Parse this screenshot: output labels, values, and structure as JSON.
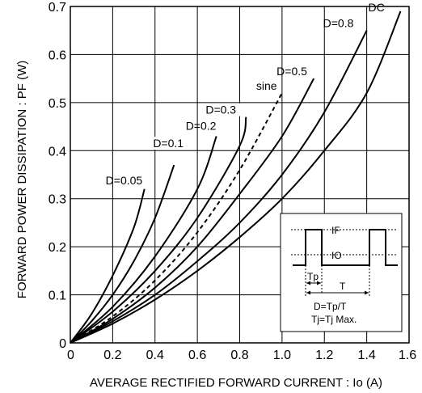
{
  "chart_data": {
    "type": "line",
    "xlabel": "AVERAGE  RECTIFIED  FORWARD  CURRENT : Io (A)",
    "ylabel": "FORWARD  POWER  DISSIPATION : PF (W)",
    "xlim": [
      0,
      1.6
    ],
    "ylim": [
      0,
      0.7
    ],
    "x_ticks": [
      "0",
      "0.2",
      "0.4",
      "0.6",
      "0.8",
      "1.0",
      "1.2",
      "1.4",
      "1.6"
    ],
    "y_ticks": [
      "0",
      "0.1",
      "0.2",
      "0.3",
      "0.4",
      "0.5",
      "0.6",
      "0.7"
    ],
    "grid": true,
    "series": [
      {
        "name": "D=0.05",
        "style": "solid",
        "x": [
          0,
          0.1,
          0.2,
          0.3,
          0.35
        ],
        "y": [
          0,
          0.06,
          0.14,
          0.24,
          0.32
        ]
      },
      {
        "name": "D=0.1",
        "style": "solid",
        "x": [
          0,
          0.1,
          0.2,
          0.3,
          0.4,
          0.49
        ],
        "y": [
          0,
          0.045,
          0.1,
          0.17,
          0.26,
          0.37
        ]
      },
      {
        "name": "D=0.2",
        "style": "solid",
        "x": [
          0,
          0.2,
          0.4,
          0.6,
          0.69
        ],
        "y": [
          0,
          0.075,
          0.18,
          0.32,
          0.43
        ]
      },
      {
        "name": "D=0.3",
        "style": "solid",
        "x": [
          0,
          0.2,
          0.4,
          0.6,
          0.8,
          0.83
        ],
        "y": [
          0,
          0.065,
          0.15,
          0.26,
          0.41,
          0.47
        ]
      },
      {
        "name": "sine",
        "style": "dashed",
        "x": [
          0,
          0.2,
          0.4,
          0.6,
          0.8,
          1.0
        ],
        "y": [
          0,
          0.055,
          0.13,
          0.23,
          0.36,
          0.52
        ]
      },
      {
        "name": "D=0.5",
        "style": "solid",
        "x": [
          0,
          0.2,
          0.4,
          0.6,
          0.8,
          1.0,
          1.15
        ],
        "y": [
          0,
          0.05,
          0.115,
          0.2,
          0.31,
          0.43,
          0.55
        ]
      },
      {
        "name": "D=0.8",
        "style": "solid",
        "x": [
          0,
          0.2,
          0.4,
          0.6,
          0.8,
          1.0,
          1.2,
          1.4
        ],
        "y": [
          0,
          0.045,
          0.1,
          0.17,
          0.25,
          0.35,
          0.48,
          0.65
        ]
      },
      {
        "name": "DC",
        "style": "solid",
        "x": [
          0,
          0.2,
          0.4,
          0.6,
          0.8,
          1.0,
          1.2,
          1.4,
          1.56
        ],
        "y": [
          0,
          0.04,
          0.09,
          0.15,
          0.22,
          0.3,
          0.4,
          0.52,
          0.69
        ]
      }
    ],
    "inset": {
      "if_label": "IF",
      "io_label": "IO",
      "tp_label": "Tp",
      "t_label": "T",
      "formula": "D=Tp/T",
      "condition": "Tj=Tj Max."
    }
  }
}
